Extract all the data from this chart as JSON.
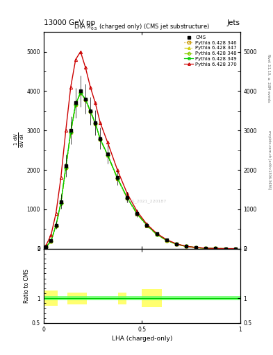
{
  "title_top": "13000 GeV pp",
  "title_right": "Jets",
  "plot_title": "LHA $\\lambda^{1}_{0.5}$ (charged only) (CMS jet substructure)",
  "xlabel": "LHA (charged-only)",
  "ylabel_main": "$\\frac{1}{\\mathrm{d}N} \\frac{\\mathrm{d}N}{\\mathrm{d}\\lambda}$",
  "ylabel_ratio": "Ratio to CMS",
  "right_label_top": "Rivet 3.1.10, $\\geq$ 2.8M events",
  "right_label_bot": "mcplots.cern.ch [arXiv:1306.3436]",
  "watermark": "CMS_2021_220187",
  "x_bins": [
    0.0,
    0.025,
    0.05,
    0.075,
    0.1,
    0.125,
    0.15,
    0.175,
    0.2,
    0.225,
    0.25,
    0.275,
    0.3,
    0.35,
    0.4,
    0.45,
    0.5,
    0.55,
    0.6,
    0.65,
    0.7,
    0.75,
    0.8,
    0.85,
    0.9,
    0.95,
    1.0
  ],
  "cms_y": [
    50,
    200,
    600,
    1200,
    2100,
    3000,
    3700,
    4000,
    3800,
    3500,
    3200,
    2800,
    2400,
    1800,
    1300,
    900,
    600,
    380,
    220,
    120,
    60,
    30,
    12,
    5,
    2,
    1
  ],
  "cms_yerr": [
    15,
    50,
    100,
    180,
    280,
    350,
    380,
    400,
    380,
    350,
    320,
    280,
    240,
    180,
    130,
    90,
    60,
    40,
    25,
    15,
    8,
    4,
    2,
    1,
    0.5,
    0.3
  ],
  "p346_y": [
    45,
    190,
    580,
    1150,
    2050,
    2950,
    3650,
    3950,
    3780,
    3480,
    3170,
    2770,
    2370,
    1780,
    1280,
    880,
    580,
    360,
    210,
    115,
    57,
    28,
    11,
    4.5,
    1.8,
    0.8
  ],
  "p347_y": [
    47,
    195,
    585,
    1160,
    2060,
    2960,
    3660,
    3960,
    3790,
    3490,
    3180,
    2780,
    2380,
    1790,
    1290,
    890,
    590,
    365,
    215,
    117,
    58,
    29,
    11.5,
    4.7,
    1.9,
    0.85
  ],
  "p348_y": [
    46,
    192,
    582,
    1155,
    2055,
    2955,
    3655,
    3955,
    3785,
    3485,
    3175,
    2775,
    2375,
    1785,
    1285,
    885,
    585,
    362,
    212,
    116,
    57.5,
    28.5,
    11.2,
    4.6,
    1.85,
    0.82
  ],
  "p349_y": [
    48,
    198,
    588,
    1165,
    2065,
    2965,
    3665,
    3965,
    3795,
    3495,
    3185,
    2785,
    2385,
    1795,
    1295,
    895,
    595,
    368,
    217,
    118,
    59,
    29.5,
    12,
    4.8,
    1.95,
    0.88
  ],
  "p370_y": [
    90,
    350,
    900,
    1800,
    3000,
    4100,
    4800,
    5000,
    4600,
    4100,
    3700,
    3200,
    2700,
    2000,
    1400,
    950,
    620,
    390,
    230,
    125,
    62,
    31,
    13,
    5,
    2,
    0.9
  ],
  "cms_color": "#000000",
  "p346_color": "#cc9900",
  "p347_color": "#cccc00",
  "p348_color": "#88cc00",
  "p349_color": "#00cc00",
  "p370_color": "#cc0000",
  "ylim_main": [
    0,
    5500
  ],
  "ylim_ratio": [
    0.5,
    2.0
  ],
  "bg_color": "#ffffff",
  "ratio_band_yellow": "#ffff60",
  "ratio_band_green": "#60ff60",
  "yticks_main": [
    0,
    1000,
    2000,
    3000,
    4000,
    5000
  ],
  "ytick_labels_main": [
    "0",
    "1000",
    "2000",
    "3000",
    "4000",
    "5000"
  ],
  "xticks_ratio": [
    0,
    0.5,
    1.0
  ],
  "xtick_labels_ratio": [
    "0",
    "0.5",
    "1"
  ]
}
